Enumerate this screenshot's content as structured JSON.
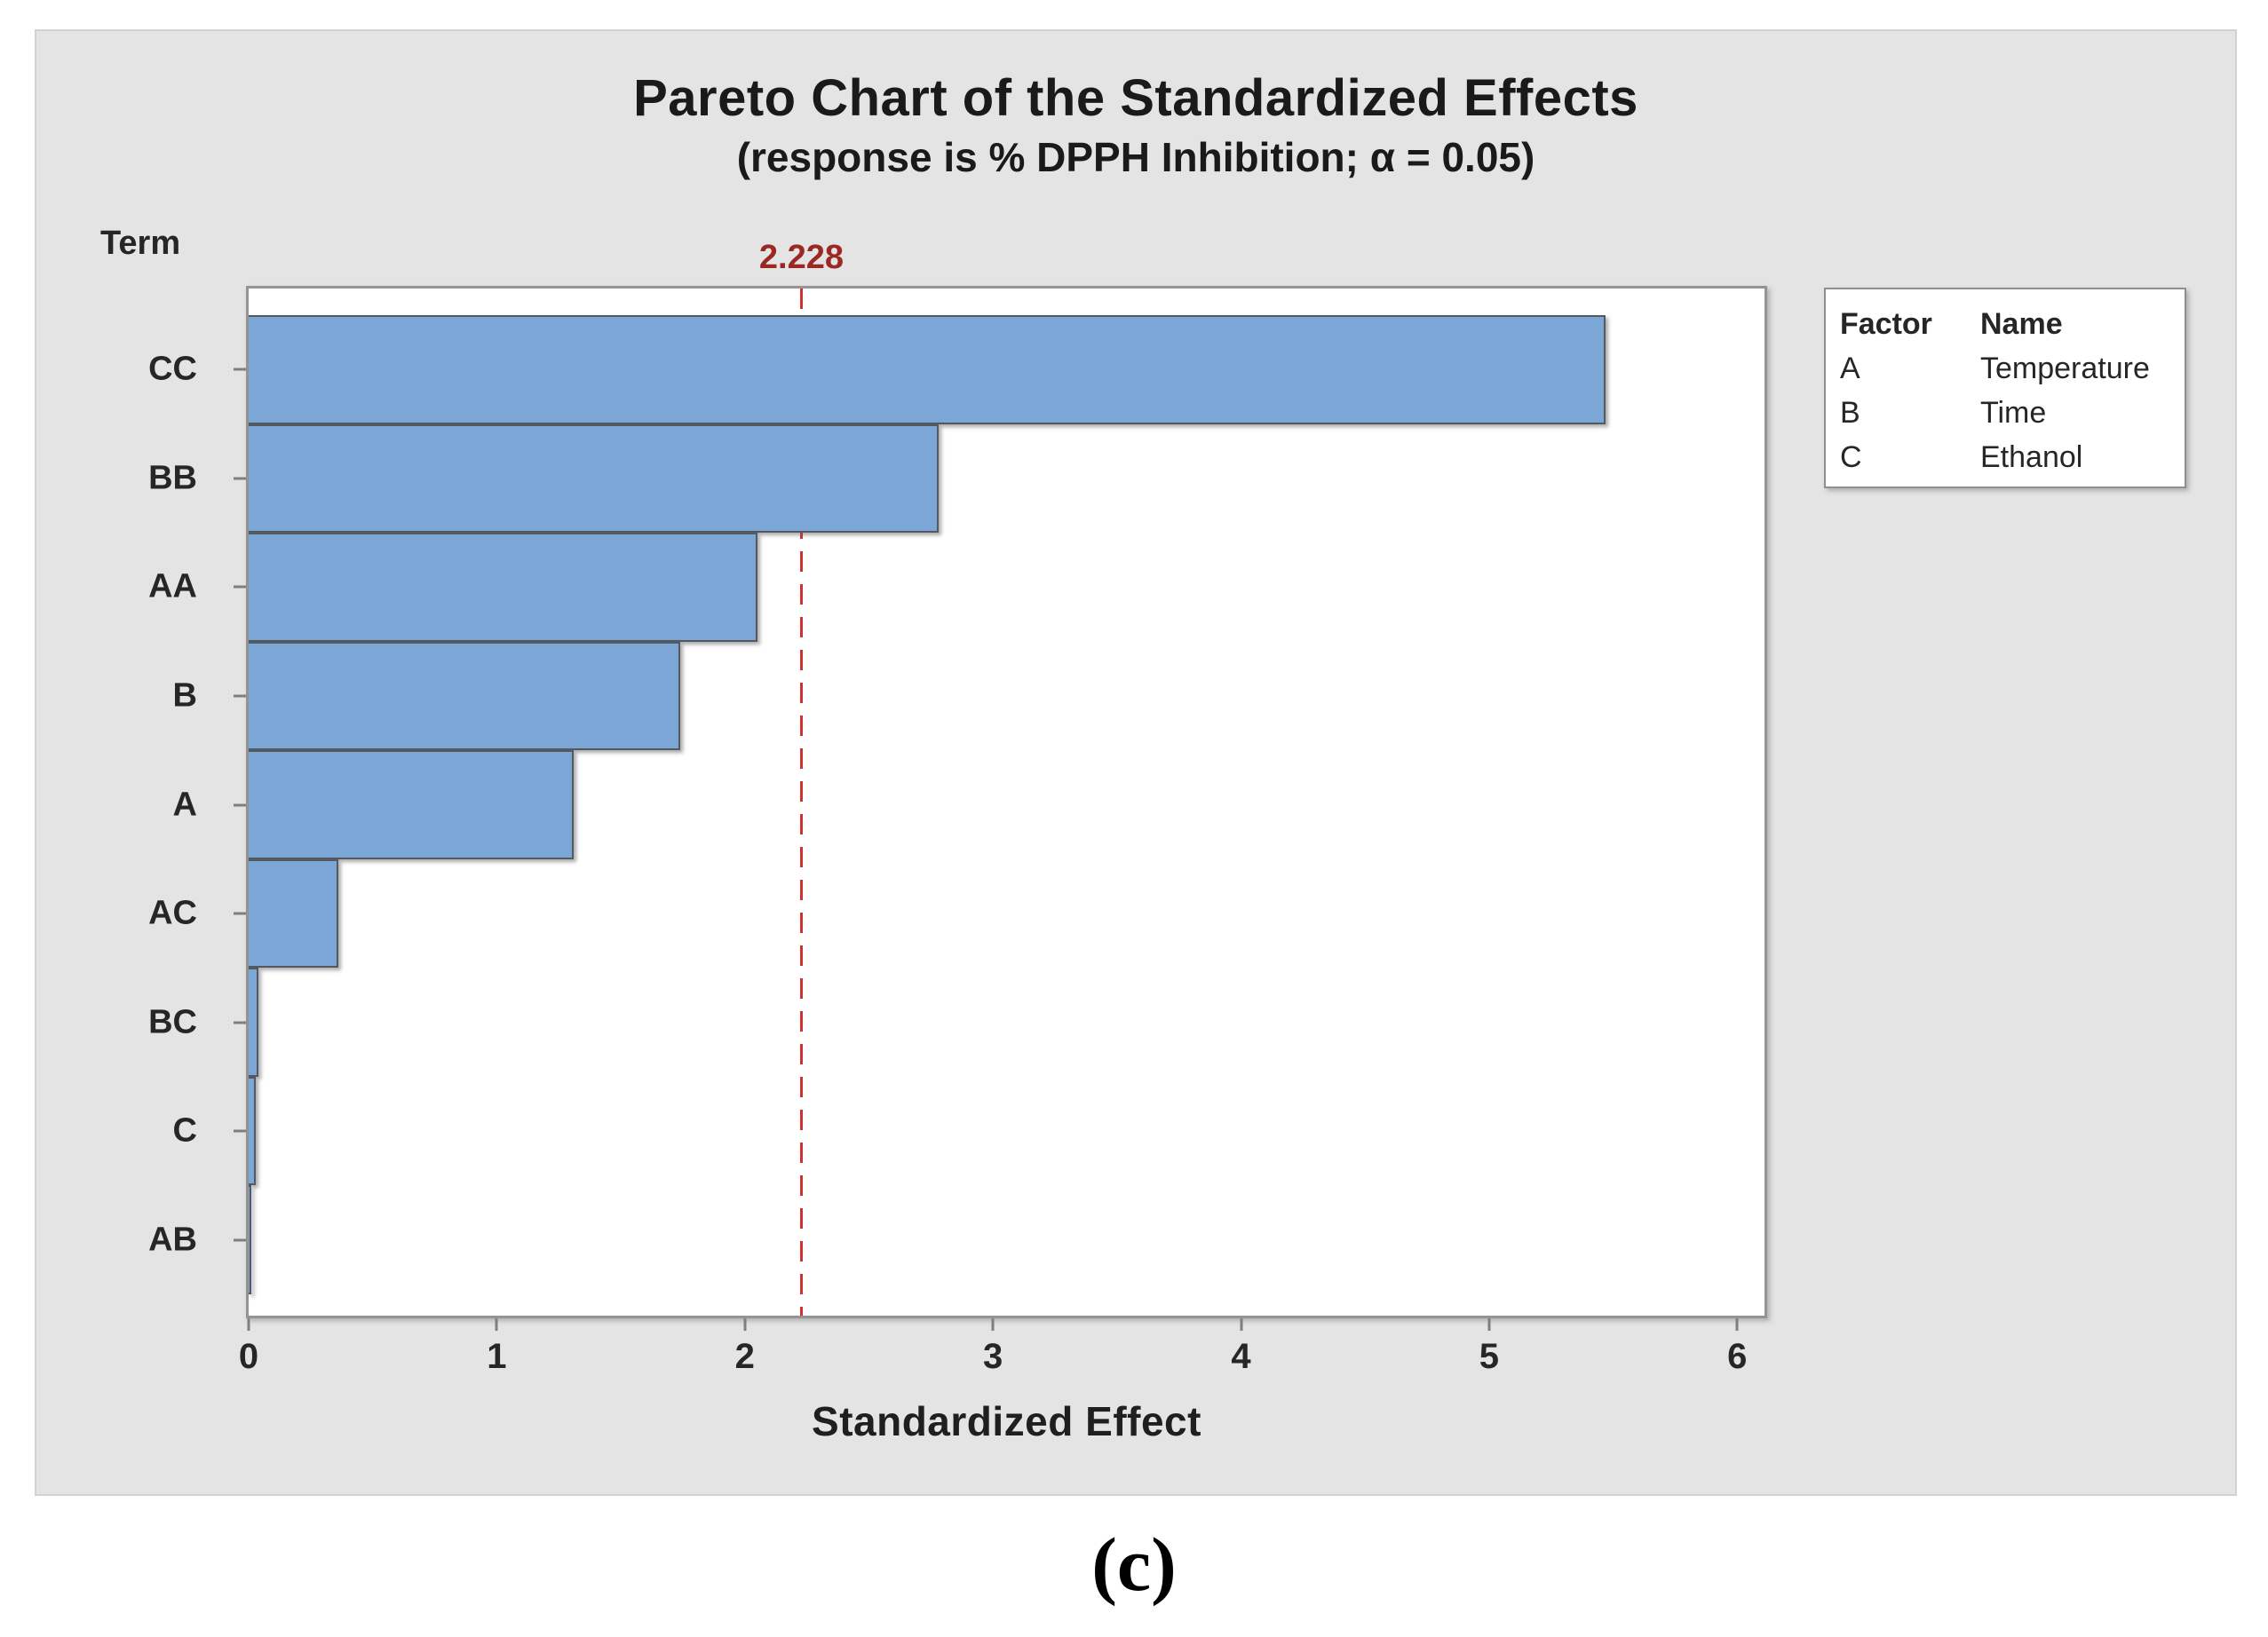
{
  "figure_label": "(c)",
  "chart": {
    "title": "Pareto Chart of the Standardized Effects",
    "subtitle": "(response is % DPPH Inhibition; α = 0.05)",
    "term_header": "Term",
    "x_axis_title": "Standardized Effect",
    "reference_label": "2.228"
  },
  "chart_data": {
    "type": "bar",
    "orientation": "horizontal",
    "title": "Pareto Chart of the Standardized Effects",
    "subtitle": "(response is % DPPH Inhibition; α = 0.05)",
    "xlabel": "Standardized Effect",
    "ylabel": "Term",
    "categories": [
      "CC",
      "BB",
      "AA",
      "B",
      "A",
      "AC",
      "BC",
      "C",
      "AB"
    ],
    "values": [
      5.47,
      2.78,
      2.05,
      1.74,
      1.31,
      0.36,
      0.04,
      0.03,
      0.01
    ],
    "x_ticks": [
      0,
      1,
      2,
      3,
      4,
      5,
      6
    ],
    "xlim": [
      0,
      6.11
    ],
    "reference_line": 2.228,
    "grid": false,
    "legend_position": "right"
  },
  "legend": {
    "headers": [
      "Factor",
      "Name"
    ],
    "rows": [
      {
        "factor": "A",
        "name": "Temperature"
      },
      {
        "factor": "B",
        "name": "Time"
      },
      {
        "factor": "C",
        "name": "Ethanol"
      }
    ]
  },
  "colors": {
    "bar_fill": "#7ca6d6",
    "bar_border": "#525960",
    "reference_line": "#cf3330",
    "reference_label": "#9c2824",
    "panel_background": "#e4e4e4",
    "plot_background": "#ffffff",
    "axis_border": "#949494"
  }
}
